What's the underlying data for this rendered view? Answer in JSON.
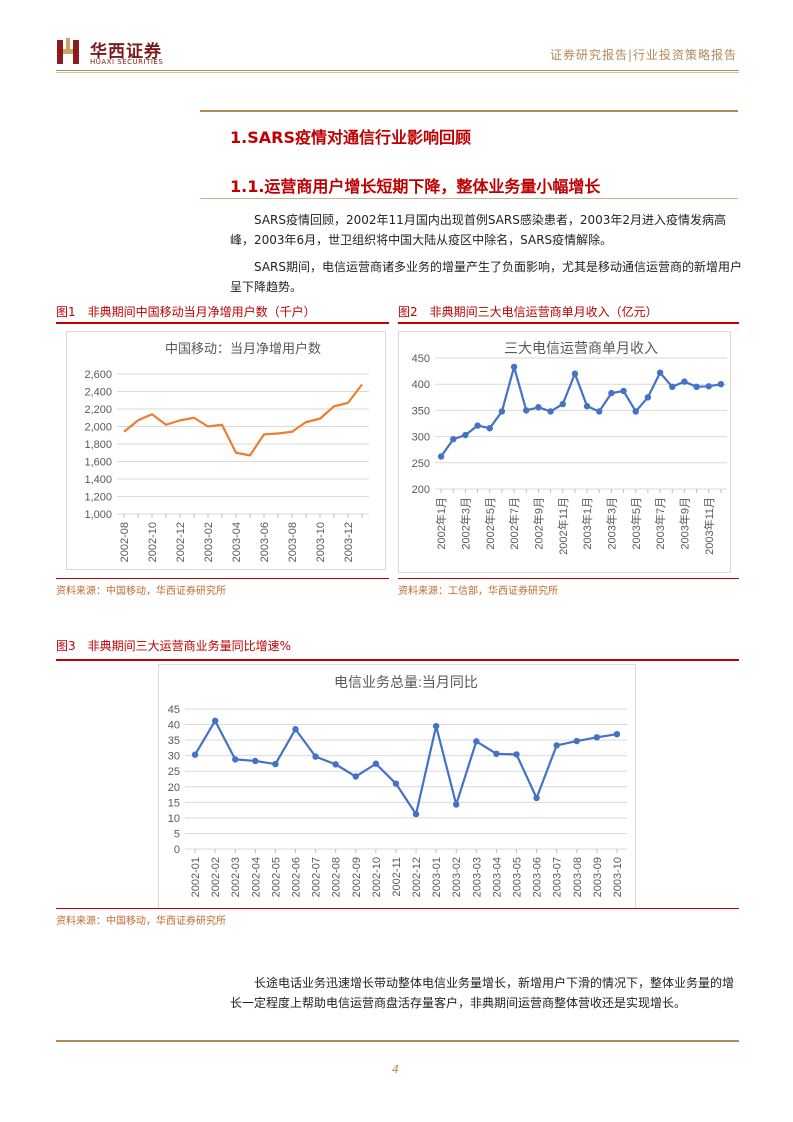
{
  "header": {
    "brand_cn": "华西证券",
    "brand_en": "HUAXI SECURITIES",
    "doc_type": "证券研究报告|行业投资策略报告"
  },
  "section": {
    "h1": "1.SARS疫情对通信行业影响回顾",
    "h2": "1.1.运营商用户增长短期下降，整体业务量小幅增长",
    "para1": "SARS疫情回顾，2002年11月国内出现首例SARS感染患者，2003年2月进入疫情发病高峰，2003年6月，世卫组织将中国大陆从疫区中除名，SARS疫情解除。",
    "para2": "SARS期间，电信运营商诸多业务的增量产生了负面影响，尤其是移动通信运营商的新增用户呈下降趋势。",
    "para3": "长途电话业务迅速增长带动整体电信业务量增长，新增用户下滑的情况下，整体业务量的增长一定程度上帮助电信运营商盘活存量客户，非典期间运营商整体营收还是实现增长。"
  },
  "fig1": {
    "label": "图1　非典期间中国移动当月净增用户数（千户）",
    "source": "资料来源：中国移动，华西证券研究所"
  },
  "fig2": {
    "label": "图2　非典期间三大电信运营商单月收入（亿元）",
    "source": "资料来源：工信部，华西证券研究所"
  },
  "fig3": {
    "label": "图3　非典期间三大运营商业务量同比增速%",
    "source": "资料来源：中国移动，华西证券研究所"
  },
  "page_number": "4",
  "colors": {
    "accent_red": "#c00000",
    "gold": "#b08a5a",
    "orange_line": "#ed7d31",
    "blue_line": "#4472c4"
  },
  "chart_data": [
    {
      "type": "line",
      "title": "中国移动：当月净增用户数",
      "x": [
        "2002-08",
        "2002-09",
        "2002-10",
        "2002-11",
        "2002-12",
        "2003-01",
        "2003-02",
        "2003-03",
        "2003-04",
        "2003-05",
        "2003-06",
        "2003-07",
        "2003-08",
        "2003-09",
        "2003-10",
        "2003-11",
        "2003-12",
        "2004-01"
      ],
      "xticks": [
        "2002-08",
        "2002-10",
        "2002-12",
        "2003-02",
        "2003-04",
        "2003-06",
        "2003-08",
        "2003-10",
        "2003-12"
      ],
      "values": [
        1940,
        2070,
        2140,
        2020,
        2070,
        2100,
        2000,
        2020,
        1700,
        1670,
        1910,
        1920,
        1940,
        2050,
        2090,
        2230,
        2270,
        2480
      ],
      "ylim": [
        1000,
        2600
      ],
      "yticks": [
        "1,000",
        "1,200",
        "1,400",
        "1,600",
        "1,800",
        "2,000",
        "2,200",
        "2,400",
        "2,600"
      ],
      "color": "#ed7d31"
    },
    {
      "type": "line",
      "title": "三大电信运营商单月收入",
      "x": [
        "2002年1月",
        "2002年2月",
        "2002年3月",
        "2002年4月",
        "2002年5月",
        "2002年6月",
        "2002年7月",
        "2002年8月",
        "2002年9月",
        "2002年10月",
        "2002年11月",
        "2002年12月",
        "2003年1月",
        "2003年2月",
        "2003年3月",
        "2003年4月",
        "2003年5月",
        "2003年6月",
        "2003年7月",
        "2003年8月",
        "2003年9月",
        "2003年10月",
        "2003年11月",
        "2003年12月"
      ],
      "xticks": [
        "2002年1月",
        "2002年3月",
        "2002年5月",
        "2002年7月",
        "2002年9月",
        "2002年11月",
        "2003年1月",
        "2003年3月",
        "2003年5月",
        "2003年7月",
        "2003年9月",
        "2003年11月"
      ],
      "values": [
        262,
        295,
        303,
        321,
        316,
        348,
        433,
        350,
        356,
        348,
        362,
        420,
        358,
        348,
        383,
        387,
        348,
        375,
        422,
        395,
        405,
        395,
        396,
        400
      ],
      "ylim": [
        200,
        450
      ],
      "yticks": [
        "200",
        "250",
        "300",
        "350",
        "400",
        "450"
      ],
      "color": "#4472c4"
    },
    {
      "type": "line",
      "title": "电信业务总量:当月同比",
      "x": [
        "2002-01",
        "2002-02",
        "2002-03",
        "2002-04",
        "2002-05",
        "2002-06",
        "2002-07",
        "2002-08",
        "2002-09",
        "2002-10",
        "2002-11",
        "2002-12",
        "2003-01",
        "2003-02",
        "2003-03",
        "2003-04",
        "2003-05",
        "2003-06",
        "2003-07",
        "2003-08",
        "2003-09",
        "2003-10"
      ],
      "values": [
        30.3,
        41.2,
        28.8,
        28.3,
        27.3,
        38.5,
        29.7,
        27.2,
        23.3,
        27.4,
        21.0,
        11.2,
        39.5,
        14.3,
        34.6,
        30.6,
        30.4,
        16.4,
        33.3,
        34.7,
        35.9,
        36.9
      ],
      "ylim": [
        0,
        45
      ],
      "yticks": [
        "0",
        "5",
        "10",
        "15",
        "20",
        "25",
        "30",
        "35",
        "40",
        "45"
      ],
      "color": "#4472c4"
    }
  ]
}
